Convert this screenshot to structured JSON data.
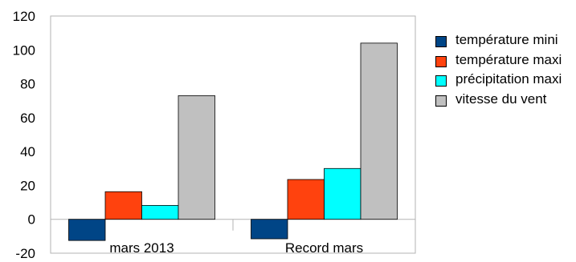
{
  "chart_data": {
    "type": "bar",
    "categories": [
      "mars 2013",
      "Record mars"
    ],
    "series": [
      {
        "name": "température mini",
        "color": "#004586",
        "values": [
          -12.5,
          -11.5
        ]
      },
      {
        "name": "température maxi",
        "color": "#ff420e",
        "values": [
          16.3,
          23.5
        ]
      },
      {
        "name": "précipitation maxi",
        "color": "#00ffff",
        "values": [
          8.2,
          30.0
        ]
      },
      {
        "name": "vitesse du vent",
        "color": "#c0c0c0",
        "values": [
          73.0,
          104.0
        ]
      }
    ],
    "y_ticks": [
      "120",
      "100",
      "80",
      "60",
      "40",
      "20",
      "0",
      "-20"
    ],
    "ylim": [
      -20,
      120
    ],
    "grid": false,
    "legend_position": "right"
  }
}
